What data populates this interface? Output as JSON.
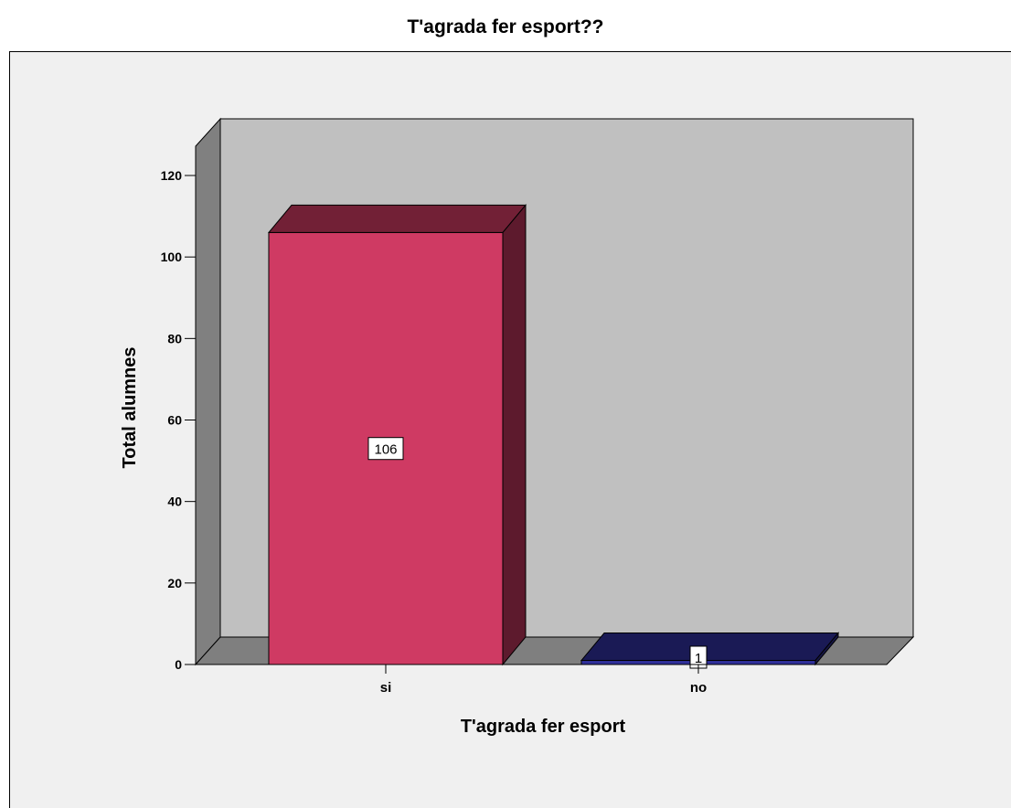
{
  "chart_data": {
    "type": "bar",
    "title": "T'agrada fer esport??",
    "xlabel": "T'agrada fer esport",
    "ylabel": "Total alumnes",
    "categories": [
      "si",
      "no"
    ],
    "values": [
      106,
      1
    ],
    "data_labels": [
      "106",
      "1"
    ],
    "ylim": [
      0,
      120
    ],
    "yticks": [
      "0",
      "20",
      "40",
      "60",
      "80",
      "100",
      "120"
    ],
    "grid": false,
    "legend": "none",
    "three_d": true,
    "colors": {
      "si": "#cf3a63",
      "no": "#30309a",
      "back_wall": "#c0c0c0",
      "side_wall": "#808080",
      "floor": "#7f7f7f",
      "background": "#f0f0f0"
    }
  }
}
